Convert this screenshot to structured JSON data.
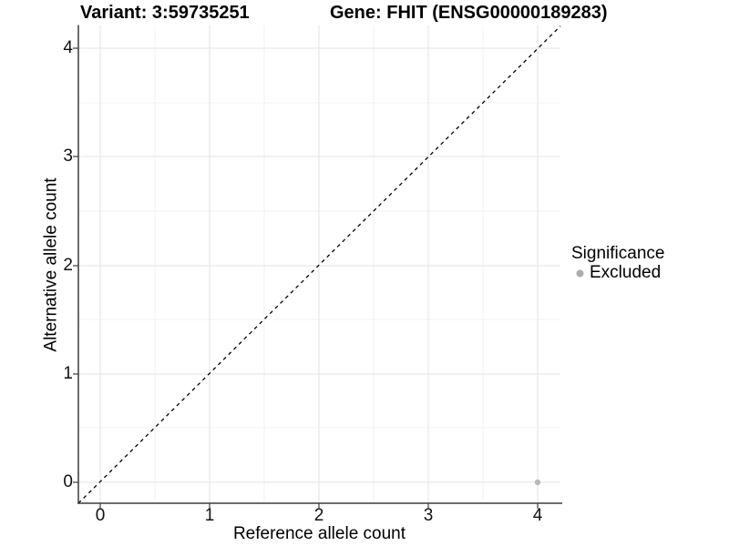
{
  "chart_data": {
    "type": "scatter",
    "titles": {
      "left": "Variant: 3:59735251",
      "right": "Gene: FHIT (ENSG00000189283)"
    },
    "xlabel": "Reference allele count",
    "ylabel": "Alternative allele count",
    "xticks": [
      "0",
      "1",
      "2",
      "3",
      "4"
    ],
    "yticks": [
      "0",
      "1",
      "2",
      "3",
      "4"
    ],
    "xlim": [
      -0.2,
      4.2
    ],
    "ylim": [
      -0.2,
      4.2
    ],
    "grid": "major at integers, minor at halves, light gray on white",
    "reference_line": {
      "type": "identity y=x",
      "style": "dashed",
      "color": "#000000"
    },
    "series": [
      {
        "name": "Excluded",
        "color": "#b9b9b9",
        "points": [
          {
            "x": 4,
            "y": 0
          }
        ]
      }
    ],
    "legend": {
      "title": "Significance",
      "position": "right",
      "items": [
        {
          "label": "Excluded",
          "color": "#adadad"
        }
      ]
    }
  },
  "colors": {
    "grid_major": "#e3e3e3",
    "grid_minor": "#f1f1f1",
    "axis": "#3c3c3c",
    "point": "#b9b9b9"
  }
}
